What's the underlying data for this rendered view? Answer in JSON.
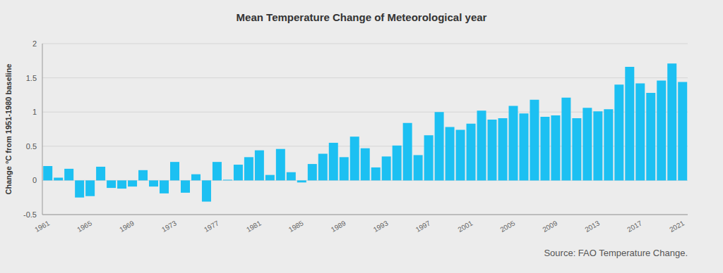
{
  "chart_data": {
    "type": "bar",
    "title": "Mean Temperature Change of Meteorological year",
    "y_label": "Change °C from 1951-1980 baseline",
    "annotations": [
      "Source: FAO Temperature Change."
    ],
    "categories": [
      "1961",
      null,
      null,
      null,
      "1965",
      null,
      null,
      null,
      "1969",
      null,
      null,
      null,
      "1973",
      null,
      null,
      null,
      "1977",
      null,
      null,
      null,
      "1981",
      null,
      null,
      null,
      "1985",
      null,
      null,
      null,
      "1989",
      null,
      null,
      null,
      "1993",
      null,
      null,
      null,
      "1997",
      null,
      null,
      null,
      "2001",
      null,
      null,
      null,
      "2005",
      null,
      null,
      null,
      "2009",
      null,
      null,
      null,
      "2013",
      null,
      null,
      null,
      "2017",
      null,
      null,
      null,
      "2021"
    ],
    "values": [
      0.21,
      0.04,
      0.17,
      -0.25,
      -0.23,
      0.2,
      -0.11,
      -0.12,
      -0.09,
      0.15,
      -0.09,
      -0.19,
      0.27,
      -0.18,
      0.09,
      -0.31,
      0.27,
      0.01,
      0.23,
      0.34,
      0.44,
      0.08,
      0.46,
      0.12,
      -0.03,
      0.24,
      0.39,
      0.55,
      0.34,
      0.64,
      0.47,
      0.19,
      0.35,
      0.51,
      0.84,
      0.37,
      0.66,
      1.0,
      0.78,
      0.74,
      0.83,
      1.02,
      0.89,
      0.91,
      1.09,
      0.98,
      1.18,
      0.93,
      0.95,
      1.21,
      0.91,
      1.06,
      1.01,
      1.04,
      1.4,
      1.66,
      1.42,
      1.28,
      1.46,
      1.71,
      1.44
    ],
    "color": "#1cc0f2",
    "ylim": [
      -0.5,
      2
    ],
    "yticks": [
      -0.5,
      0,
      0.5,
      1,
      1.5,
      2
    ],
    "grid": true
  }
}
